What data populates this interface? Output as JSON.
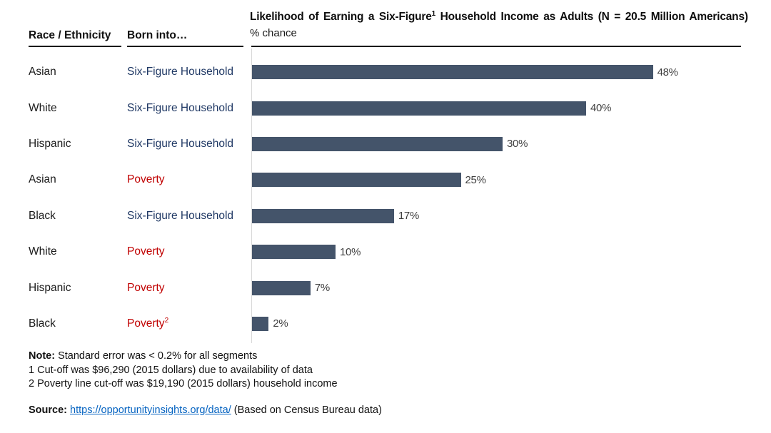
{
  "header": {
    "col1": "Race / Ethnicity",
    "col2": "Born into…",
    "title_prefix": "Likelihood of Earning a Six-Figure",
    "title_sup": "1",
    "title_suffix": " Household Income as Adults (N = 20.5 Million Americans)",
    "subtitle": "% chance"
  },
  "chart_data": {
    "type": "bar",
    "orientation": "horizontal",
    "title": "Likelihood of Earning a Six-Figure¹ Household Income as Adults (N = 20.5 Million Americans)",
    "subtitle": "% chance",
    "xlim": [
      0,
      58
    ],
    "grid": false,
    "legend": "none",
    "value_suffix": "%",
    "categories": [
      "Asian — Six-Figure Household",
      "White — Six-Figure Household",
      "Hispanic — Six-Figure Household",
      "Asian — Poverty",
      "Black — Six-Figure Household",
      "White — Poverty",
      "Hispanic — Poverty",
      "Black — Poverty²"
    ],
    "values": [
      48,
      40,
      30,
      25,
      17,
      10,
      7,
      2
    ],
    "rows": [
      {
        "race": "Asian",
        "born_into": "Six-Figure Household",
        "born_into_type": "six_figure",
        "value": 48,
        "label": "48%"
      },
      {
        "race": "White",
        "born_into": "Six-Figure Household",
        "born_into_type": "six_figure",
        "value": 40,
        "label": "40%"
      },
      {
        "race": "Hispanic",
        "born_into": "Six-Figure Household",
        "born_into_type": "six_figure",
        "value": 30,
        "label": "30%"
      },
      {
        "race": "Asian",
        "born_into": "Poverty",
        "born_into_type": "poverty",
        "value": 25,
        "label": "25%"
      },
      {
        "race": "Black",
        "born_into": "Six-Figure Household",
        "born_into_type": "six_figure",
        "value": 17,
        "label": "17%"
      },
      {
        "race": "White",
        "born_into": "Poverty",
        "born_into_type": "poverty",
        "value": 10,
        "label": "10%"
      },
      {
        "race": "Hispanic",
        "born_into": "Poverty",
        "born_into_type": "poverty",
        "value": 7,
        "label": "7%"
      },
      {
        "race": "Black",
        "born_into": "Poverty",
        "born_into_sup": "2",
        "born_into_type": "poverty",
        "value": 2,
        "label": "2%"
      }
    ]
  },
  "notes": {
    "note_label": "Note:",
    "note_text": " Standard error was < 0.2% for all segments",
    "footnotes": [
      "1 Cut-off was $96,290 (2015 dollars) due to availability of data",
      "2 Poverty line cut-off was $19,190 (2015 dollars) household income"
    ]
  },
  "source": {
    "label": "Source:",
    "link_text": "https://opportunityinsights.org/data/",
    "suffix": " (Based on Census Bureau data)"
  },
  "colors": {
    "bar": "#44546A",
    "six_figure_text": "#1F3864",
    "poverty_text": "#C00000",
    "link": "#0563C1",
    "value_label": "#404040",
    "axis_line": "#D9D9D9"
  }
}
